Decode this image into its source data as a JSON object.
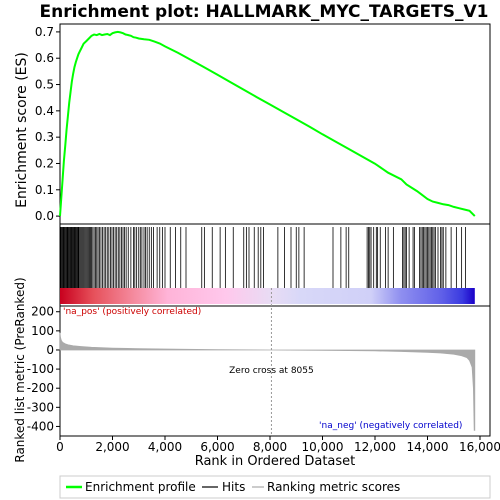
{
  "chart_data": {
    "type": "line",
    "title": "Enrichment plot: HALLMARK_MYC_TARGETS_V1",
    "xlabel": "Rank in Ordered Dataset",
    "xlim": [
      0,
      16000
    ],
    "x_ticks": [
      0,
      2000,
      4000,
      6000,
      8000,
      10000,
      12000,
      14000,
      16000
    ],
    "x_tick_labels": [
      "0",
      "2,000",
      "4,000",
      "6,000",
      "8,000",
      "10,000",
      "12,000",
      "14,000",
      "16,000"
    ],
    "n_genes": 15800,
    "es_panel": {
      "ylabel": "Enrichment score (ES)",
      "ylim": [
        -0.03,
        0.73
      ],
      "y_ticks": [
        0.0,
        0.1,
        0.2,
        0.3,
        0.4,
        0.5,
        0.6,
        0.7
      ],
      "y_tick_labels": [
        "0.0",
        "0.1",
        "0.2",
        "0.3",
        "0.4",
        "0.5",
        "0.6",
        "0.7"
      ],
      "curve_color": "#00ff00",
      "series": [
        {
          "x": [
            0,
            50,
            100,
            150,
            200,
            250,
            300,
            350,
            400,
            450,
            500,
            550,
            600,
            650,
            700,
            750,
            800,
            900,
            1000,
            1100,
            1200,
            1300,
            1400,
            1500,
            1600,
            1700,
            1800,
            1900,
            2000,
            2100,
            2200,
            2300,
            2400,
            2500,
            2600,
            2700,
            2800,
            2900,
            3000,
            3200,
            3400,
            3600,
            3800,
            4000,
            4500,
            5000,
            5500,
            6000,
            6500,
            7000,
            7500,
            8000,
            8500,
            9000,
            9500,
            10000,
            10500,
            11000,
            11500,
            12000,
            12500,
            13000,
            13200,
            13600,
            13800,
            14000,
            14200,
            14400,
            14600,
            14800,
            15000,
            15200,
            15400,
            15600,
            15800
          ],
          "y": [
            0.0,
            0.07,
            0.14,
            0.21,
            0.27,
            0.33,
            0.38,
            0.43,
            0.47,
            0.51,
            0.54,
            0.565,
            0.585,
            0.6,
            0.615,
            0.625,
            0.635,
            0.655,
            0.665,
            0.675,
            0.685,
            0.69,
            0.688,
            0.692,
            0.688,
            0.69,
            0.692,
            0.688,
            0.695,
            0.698,
            0.7,
            0.698,
            0.695,
            0.69,
            0.688,
            0.685,
            0.68,
            0.678,
            0.675,
            0.672,
            0.67,
            0.663,
            0.656,
            0.645,
            0.62,
            0.593,
            0.565,
            0.537,
            0.509,
            0.48,
            0.452,
            0.424,
            0.396,
            0.368,
            0.34,
            0.311,
            0.283,
            0.255,
            0.227,
            0.199,
            0.165,
            0.14,
            0.12,
            0.095,
            0.08,
            0.065,
            0.055,
            0.05,
            0.045,
            0.042,
            0.035,
            0.03,
            0.025,
            0.02,
            0.0
          ]
        }
      ]
    },
    "hits_panel": {
      "hit_color": "#000000",
      "hit_positions": [
        5,
        30,
        60,
        90,
        120,
        150,
        180,
        210,
        240,
        270,
        300,
        330,
        360,
        390,
        420,
        450,
        480,
        510,
        540,
        570,
        600,
        630,
        660,
        690,
        720,
        760,
        800,
        840,
        880,
        920,
        960,
        1000,
        1040,
        1080,
        1120,
        1160,
        1200,
        1250,
        1300,
        1350,
        1400,
        1450,
        1500,
        1560,
        1620,
        1680,
        1740,
        1800,
        1860,
        1920,
        1980,
        2040,
        2100,
        2160,
        2220,
        2280,
        2340,
        2400,
        2460,
        2520,
        2600,
        2700,
        2800,
        2850,
        2920,
        3000,
        3060,
        3120,
        3200,
        3260,
        3320,
        3400,
        3480,
        3560,
        3700,
        3800,
        3900,
        4000,
        4200,
        4400,
        4600,
        4800,
        5400,
        5500,
        5800,
        6100,
        6300,
        6600,
        7000,
        7100,
        7200,
        7400,
        7550,
        7650,
        7750,
        8300,
        8550,
        8800,
        9000,
        9100,
        9300,
        10400,
        10700,
        10900,
        11000,
        11700,
        11750,
        11800,
        11850,
        11950,
        12050,
        12100,
        12200,
        12400,
        12500,
        12700,
        13050,
        13100,
        13150,
        13200,
        13300,
        13450,
        13500,
        13700,
        13750,
        13800,
        13850,
        13900,
        13950,
        14000,
        14050,
        14100,
        14150,
        14200,
        14250,
        14300,
        14400,
        14500,
        14550,
        14600,
        14700,
        14900,
        15100,
        15300,
        15450
      ]
    },
    "colorbar": {
      "stops": [
        {
          "frac": 0.0,
          "color": "#c8001e"
        },
        {
          "frac": 0.08,
          "color": "#e6505a"
        },
        {
          "frac": 0.18,
          "color": "#f58ca0"
        },
        {
          "frac": 0.26,
          "color": "#ffb4d8"
        },
        {
          "frac": 0.4,
          "color": "#ffc8ec"
        },
        {
          "frac": 0.51,
          "color": "#e8dcf4"
        },
        {
          "frac": 0.58,
          "color": "#d8d8f8"
        },
        {
          "frac": 0.75,
          "color": "#d0d0f8"
        },
        {
          "frac": 0.82,
          "color": "#9090f0"
        },
        {
          "frac": 0.92,
          "color": "#6060e8"
        },
        {
          "frac": 0.97,
          "color": "#3a3ae0"
        },
        {
          "frac": 1.0,
          "color": "#1a00c8"
        }
      ]
    },
    "metric_panel": {
      "ylabel": "Ranked list metric (PreRanked)",
      "ylim": [
        -450,
        230
      ],
      "y_ticks": [
        200,
        100,
        0,
        -100,
        -200,
        -300,
        -400
      ],
      "y_tick_labels": [
        "200",
        "100",
        "0",
        "-100",
        "-200",
        "-300",
        "-400"
      ],
      "fill_color": "#aaaaaa",
      "series": [
        {
          "x": [
            0,
            20,
            50,
            100,
            200,
            300,
            500,
            800,
            1200,
            2000,
            3000,
            4000,
            6000,
            8055,
            10000,
            12000,
            13000,
            14000,
            14500,
            15000,
            15300,
            15500,
            15600,
            15700,
            15750,
            15780,
            15800
          ],
          "y": [
            90,
            65,
            50,
            40,
            32,
            27,
            22,
            18,
            14,
            10,
            7,
            5,
            2,
            0,
            -2,
            -5,
            -8,
            -12,
            -16,
            -22,
            -30,
            -40,
            -55,
            -90,
            -200,
            -420,
            -420
          ]
        }
      ],
      "annotations": {
        "pos_label": "'na_pos' (positively correlated)",
        "pos_color": "#cc0000",
        "neg_label": "'na_neg' (negatively correlated)",
        "neg_color": "#0000cc",
        "zero_cross_label": "Zero cross at 8055",
        "zero_cross_x": 8055
      }
    },
    "legend": {
      "placement": "bottom",
      "items": [
        {
          "label": "Enrichment profile",
          "color": "#00ff00"
        },
        {
          "label": "Hits",
          "color": "#000000"
        },
        {
          "label": "Ranking metric scores",
          "color": "#aaaaaa"
        }
      ]
    }
  }
}
